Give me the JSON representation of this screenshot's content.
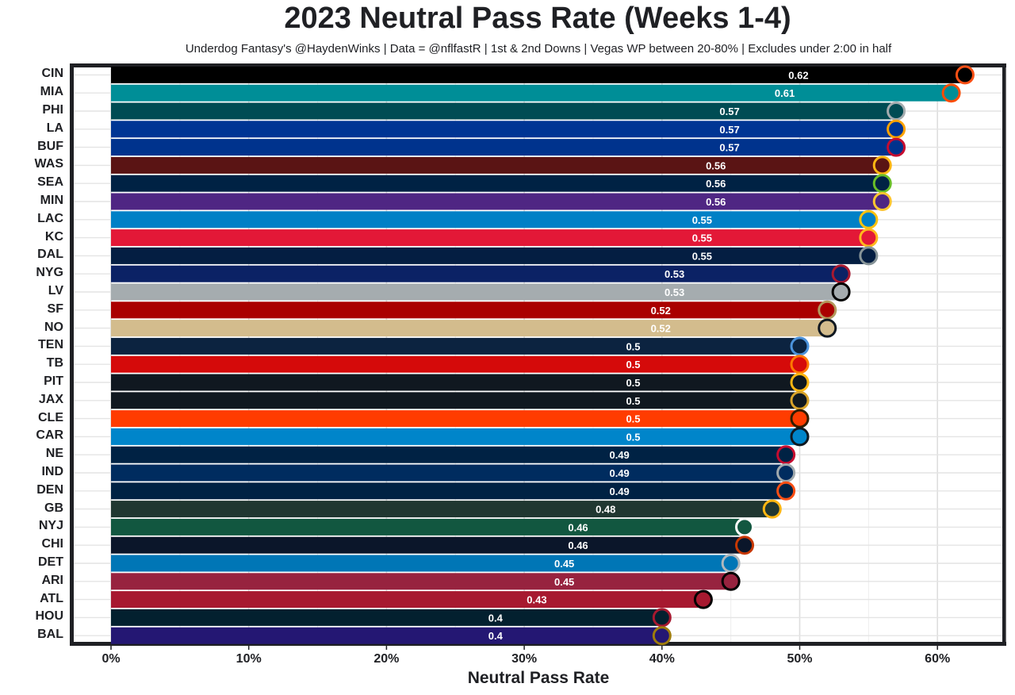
{
  "chart_data": {
    "type": "bar",
    "orientation": "horizontal",
    "title": "2023 Neutral Pass Rate (Weeks 1-4)",
    "subtitle": "Underdog Fantasy's @HaydenWinks | Data = @nflfastR | 1st & 2nd Downs | Vegas WP between 20-80% | Excludes under 2:00 in half",
    "xlabel": "Neutral Pass Rate",
    "ylabel": "",
    "xlim": [
      -0.03,
      0.65
    ],
    "xticks": [
      0,
      0.1,
      0.2,
      0.3,
      0.4,
      0.5,
      0.6
    ],
    "xtick_labels": [
      "0%",
      "10%",
      "20%",
      "30%",
      "40%",
      "50%",
      "60%"
    ],
    "grid": true,
    "categories": [
      "CIN",
      "MIA",
      "PHI",
      "LA",
      "BUF",
      "WAS",
      "SEA",
      "MIN",
      "LAC",
      "KC",
      "DAL",
      "NYG",
      "LV",
      "SF",
      "NO",
      "TEN",
      "TB",
      "PIT",
      "JAX",
      "CLE",
      "CAR",
      "NE",
      "IND",
      "DEN",
      "GB",
      "NYJ",
      "CHI",
      "DET",
      "ARI",
      "ATL",
      "HOU",
      "BAL"
    ],
    "values": [
      0.62,
      0.61,
      0.57,
      0.57,
      0.57,
      0.56,
      0.56,
      0.56,
      0.55,
      0.55,
      0.55,
      0.53,
      0.53,
      0.52,
      0.52,
      0.5,
      0.5,
      0.5,
      0.5,
      0.5,
      0.5,
      0.49,
      0.49,
      0.49,
      0.48,
      0.46,
      0.46,
      0.45,
      0.45,
      0.43,
      0.4,
      0.4
    ],
    "value_labels": [
      "0.62",
      "0.61",
      "0.57",
      "0.57",
      "0.57",
      "0.56",
      "0.56",
      "0.56",
      "0.55",
      "0.55",
      "0.55",
      "0.53",
      "0.53",
      "0.52",
      "0.52",
      "0.5",
      "0.5",
      "0.5",
      "0.5",
      "0.5",
      "0.5",
      "0.49",
      "0.49",
      "0.49",
      "0.48",
      "0.46",
      "0.46",
      "0.45",
      "0.45",
      "0.43",
      "0.4",
      "0.4"
    ],
    "colors": [
      "#000000",
      "#008E97",
      "#004C54",
      "#003594",
      "#00338D",
      "#5A1414",
      "#002244",
      "#4F2683",
      "#0080C6",
      "#E31837",
      "#041E42",
      "#0B2265",
      "#A5ACAF",
      "#AA0000",
      "#D3BC8D",
      "#0C2340",
      "#D50A0A",
      "#101820",
      "#101820",
      "#FF3C00",
      "#0085CA",
      "#002244",
      "#002C5F",
      "#002244",
      "#203731",
      "#125740",
      "#0B162A",
      "#0076B6",
      "#97233F",
      "#A71930",
      "#03202F",
      "#241773"
    ],
    "secondary_colors": [
      "#FB4F14",
      "#FC4C02",
      "#A5ACAF",
      "#FFA300",
      "#C60C30",
      "#FFB612",
      "#69BE28",
      "#FFC62F",
      "#FFC20E",
      "#FFB81C",
      "#869397",
      "#A71930",
      "#000000",
      "#B3995D",
      "#101820",
      "#4B92DB",
      "#FF7900",
      "#FFB612",
      "#D7A22A",
      "#311D00",
      "#101820",
      "#C60C30",
      "#A2AAAD",
      "#FB4F14",
      "#FFB612",
      "#FFFFFF",
      "#C83803",
      "#B0B7BC",
      "#000000",
      "#000000",
      "#A71930",
      "#9E7C0C"
    ]
  }
}
